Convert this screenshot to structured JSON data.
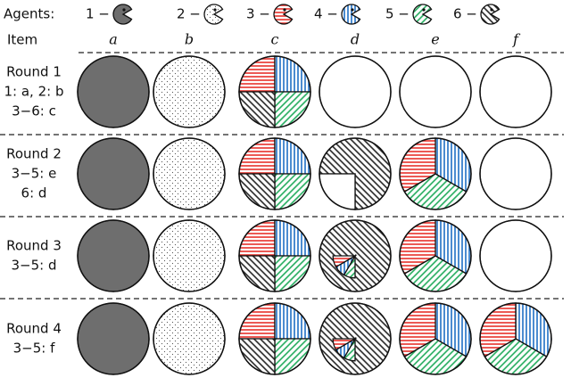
{
  "legend": {
    "title": "Agents:",
    "agents": [
      "1 −",
      "2 −",
      "3 −",
      "4 −",
      "5 −",
      "6 −"
    ]
  },
  "header": {
    "item": "Item",
    "columns": [
      "a",
      "b",
      "c",
      "d",
      "e",
      "f"
    ]
  },
  "rounds": [
    {
      "title": "Round 1",
      "lines": [
        "1: a, 2: b",
        "3−6: c"
      ]
    },
    {
      "title": "Round 2",
      "lines": [
        "3−5: e",
        "6: d"
      ]
    },
    {
      "title": "Round 3",
      "lines": [
        "3−5: d"
      ]
    },
    {
      "title": "Round 4",
      "lines": [
        "3−5: f"
      ]
    }
  ]
}
